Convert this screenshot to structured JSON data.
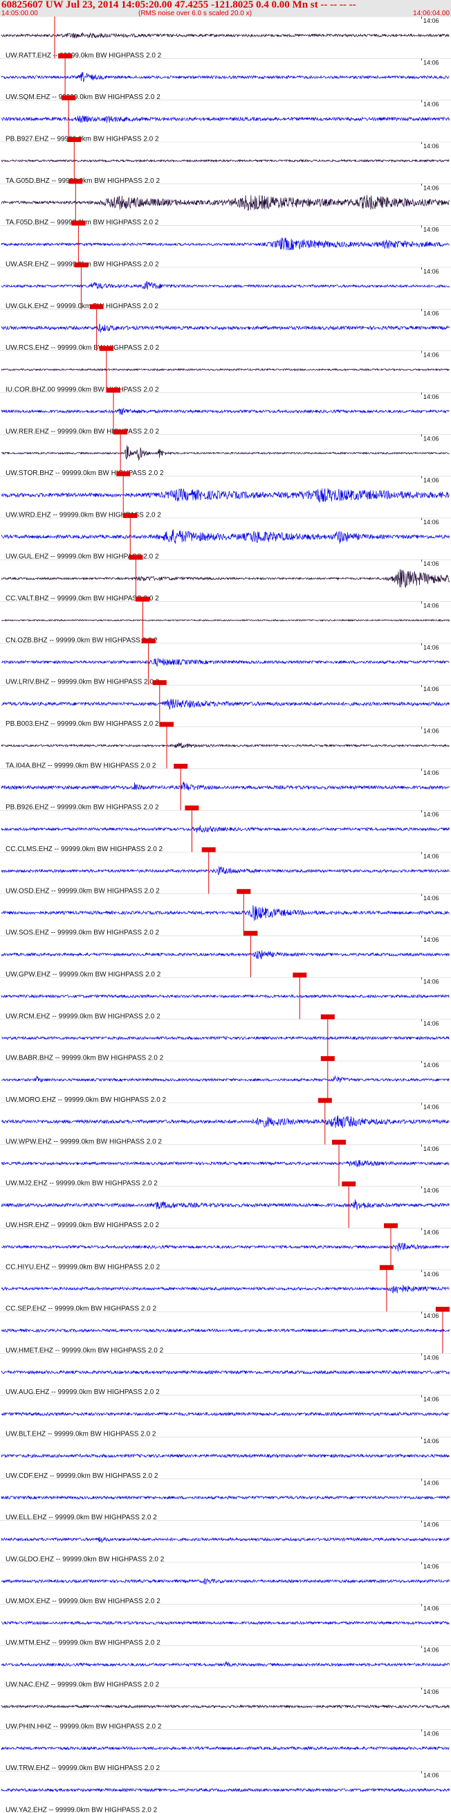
{
  "header": {
    "title": "60825607 UW Jul 23, 2014 14:05:20.00   47.4255 -121.8025  0.4 0.00 Mn st -- -- -- --",
    "start_time": "14:05:00.00",
    "note": "(RMS noise over 6.0 s scaled 20.0 x)",
    "end_time": "14:06:04.00"
  },
  "chart_data": {
    "type": "line",
    "title": "60825607 UW Jul 23, 2014 14:05:20.00   47.4255 -121.8025  0.4 0.00 Mn st -- -- -- --",
    "x_start": "14:05:00.00",
    "x_end": "14:06:04.00",
    "tick_label": "14:06",
    "tick_time_s": 60,
    "duration_s": 64,
    "colors": {
      "dark": "#1a0030",
      "blue": "#0000e6",
      "pick": "#e00000"
    },
    "channels": [
      {
        "label": "UW.RATT.EHZ -- 99999.0km BW  HIGHPASS  2.0  2",
        "pick_s": 7.6,
        "amp": 0.45,
        "color": "dark",
        "bursts": [
          {
            "t": 10,
            "a": 0.6,
            "w": 6
          }
        ]
      },
      {
        "label": "UW.SQM.EHZ -- 99999.0km BW  HIGHPASS  2.0  2",
        "pick_s": 9.1,
        "amp": 0.5,
        "color": "blue",
        "bursts": [
          {
            "t": 11.5,
            "a": 1.6,
            "w": 1.2
          }
        ]
      },
      {
        "label": "PB.B927.EHZ -- 99999.0km BW  HIGHPASS  2.0  2",
        "pick_s": 9.6,
        "amp": 0.6,
        "color": "blue",
        "bursts": [
          {
            "t": 11,
            "a": 0.9,
            "w": 1.5
          },
          {
            "t": 15,
            "a": 0.7,
            "w": 2
          }
        ]
      },
      {
        "label": "TA.G05D.BHZ -- 99999.0km BW  HIGHPASS  2.0  2",
        "pick_s": 10.4,
        "amp": 0.35,
        "color": "dark",
        "bursts": []
      },
      {
        "label": "TA.F05D.BHZ -- 99999.0km BW  HIGHPASS  2.0  2",
        "pick_s": 10.6,
        "amp": 0.5,
        "color": "dark",
        "bursts": [
          {
            "t": 16,
            "a": 2.2,
            "w": 6
          },
          {
            "t": 35,
            "a": 2.4,
            "w": 9
          },
          {
            "t": 52,
            "a": 1.8,
            "w": 6
          }
        ]
      },
      {
        "label": "UW.ASR.EHZ -- 99999.0km BW  HIGHPASS  2.0  2",
        "pick_s": 11.0,
        "amp": 0.45,
        "color": "blue",
        "bursts": [
          {
            "t": 40,
            "a": 2.0,
            "w": 6
          },
          {
            "t": 55,
            "a": 1.0,
            "w": 5
          }
        ]
      },
      {
        "label": "UW.GLK.EHZ -- 99999.0km BW  HIGHPASS  2.0  2",
        "pick_s": 11.4,
        "amp": 0.45,
        "color": "blue",
        "bursts": [
          {
            "t": 13,
            "a": 1.2,
            "w": 1.5
          },
          {
            "t": 20.5,
            "a": 1.6,
            "w": 1.5
          }
        ]
      },
      {
        "label": "UW.RCS.EHZ -- 99999.0km BW  HIGHPASS  2.0  2",
        "pick_s": 13.6,
        "amp": 0.6,
        "color": "blue",
        "bursts": [
          {
            "t": 14,
            "a": 1.0,
            "w": 1.5
          }
        ]
      },
      {
        "label": "IU.COR.BHZ.00 99999.0km BW  HIGHPASS  2.0  2",
        "pick_s": 15.0,
        "amp": 0.3,
        "color": "dark",
        "bursts": []
      },
      {
        "label": "UW.RER.EHZ -- 99999.0km BW  HIGHPASS  2.0  2",
        "pick_s": 16.0,
        "amp": 0.5,
        "color": "blue",
        "bursts": [
          {
            "t": 17,
            "a": 0.9,
            "w": 1.5
          }
        ]
      },
      {
        "label": "UW.STOR.BHZ -- 99999.0km BW  HIGHPASS  2.0  2",
        "pick_s": 17.0,
        "amp": 0.3,
        "color": "dark",
        "bursts": [
          {
            "t": 17.8,
            "a": 3.0,
            "w": 0.6
          },
          {
            "t": 19.5,
            "a": 2.6,
            "w": 0.6
          },
          {
            "t": 22.5,
            "a": 1.8,
            "w": 0.5
          }
        ]
      },
      {
        "label": "UW.WRD.EHZ -- 99999.0km BW  HIGHPASS  2.0  2",
        "pick_s": 17.4,
        "amp": 0.7,
        "color": "blue",
        "bursts": [
          {
            "t": 25,
            "a": 1.6,
            "w": 8
          },
          {
            "t": 45,
            "a": 1.8,
            "w": 10
          }
        ]
      },
      {
        "label": "UW.GUL.EHZ -- 99999.0km BW  HIGHPASS  2.0  2",
        "pick_s": 18.4,
        "amp": 0.6,
        "color": "blue",
        "bursts": [
          {
            "t": 24,
            "a": 2.2,
            "w": 5
          },
          {
            "t": 36,
            "a": 1.6,
            "w": 5
          },
          {
            "t": 48,
            "a": 2.0,
            "w": 1.5
          }
        ]
      },
      {
        "label": "CC.VALT.BHZ -- 99999.0km BW  HIGHPASS  2.0  2",
        "pick_s": 19.2,
        "amp": 0.35,
        "color": "dark",
        "bursts": [
          {
            "t": 20,
            "a": 0.6,
            "w": 4
          },
          {
            "t": 57,
            "a": 3.2,
            "w": 5
          }
        ]
      },
      {
        "label": "CN.OZB.BHZ -- 99999.0km BW  HIGHPASS  2.0  2",
        "pick_s": 20.2,
        "amp": 0.25,
        "color": "dark",
        "bursts": []
      },
      {
        "label": "UW.LRIV.BHZ -- 99999.0km BW  HIGHPASS  2.0  2",
        "pick_s": 21.0,
        "amp": 0.5,
        "color": "blue",
        "bursts": [
          {
            "t": 22,
            "a": 1.0,
            "w": 4
          }
        ]
      },
      {
        "label": "PB.B003.EHZ -- 99999.0km BW  HIGHPASS  2.0  2",
        "pick_s": 22.6,
        "amp": 0.6,
        "color": "blue",
        "bursts": [
          {
            "t": 24,
            "a": 1.3,
            "w": 4
          }
        ]
      },
      {
        "label": "TA.I04A.BHZ -- 99999.0km BW  HIGHPASS  2.0  2",
        "pick_s": 23.6,
        "amp": 0.35,
        "color": "dark",
        "bursts": [
          {
            "t": 25,
            "a": 0.8,
            "w": 2
          }
        ]
      },
      {
        "label": "PB.B926.EHZ -- 99999.0km BW  HIGHPASS  2.0  2",
        "pick_s": 25.6,
        "amp": 0.6,
        "color": "blue",
        "bursts": [
          {
            "t": 19,
            "a": 1.2,
            "w": 0.6
          },
          {
            "t": 26,
            "a": 1.5,
            "w": 1
          }
        ]
      },
      {
        "label": "CC.CLMS.EHZ -- 99999.0km BW  HIGHPASS  2.0  2",
        "pick_s": 27.2,
        "amp": 0.5,
        "color": "blue",
        "bursts": [
          {
            "t": 28,
            "a": 1.0,
            "w": 2
          }
        ]
      },
      {
        "label": "UW.OSD.EHZ -- 99999.0km BW  HIGHPASS  2.0  2",
        "pick_s": 29.6,
        "amp": 0.5,
        "color": "blue",
        "bursts": [
          {
            "t": 31,
            "a": 1.2,
            "w": 2
          }
        ]
      },
      {
        "label": "UW.SOS.EHZ -- 99999.0km BW  HIGHPASS  2.0  2",
        "pick_s": 34.6,
        "amp": 0.55,
        "color": "blue",
        "bursts": [
          {
            "t": 36,
            "a": 2.4,
            "w": 3
          }
        ]
      },
      {
        "label": "UW.GPW.EHZ -- 99999.0km BW  HIGHPASS  2.0  2",
        "pick_s": 35.6,
        "amp": 0.5,
        "color": "blue",
        "bursts": [
          {
            "t": 36.5,
            "a": 1.6,
            "w": 1.5
          }
        ]
      },
      {
        "label": "UW.RCM.EHZ -- 99999.0km BW  HIGHPASS  2.0  2",
        "pick_s": 42.6,
        "amp": 0.5,
        "color": "blue",
        "bursts": []
      },
      {
        "label": "UW.BABR.BHZ -- 99999.0km BW  HIGHPASS  2.0  2",
        "pick_s": 46.6,
        "amp": 0.5,
        "color": "blue",
        "bursts": []
      },
      {
        "label": "UW.MORO.EHZ -- 99999.0km BW  HIGHPASS  2.0  2",
        "pick_s": 46.6,
        "amp": 0.45,
        "color": "blue",
        "bursts": [
          {
            "t": 5,
            "a": 0.9,
            "w": 0.6
          },
          {
            "t": 47.5,
            "a": 1.2,
            "w": 1
          }
        ]
      },
      {
        "label": "UW.WPW.EHZ -- 99999.0km BW  HIGHPASS  2.0  2",
        "pick_s": 46.2,
        "amp": 0.6,
        "color": "blue",
        "bursts": [
          {
            "t": 37,
            "a": 1.6,
            "w": 3
          },
          {
            "t": 47.5,
            "a": 2.4,
            "w": 3
          }
        ]
      },
      {
        "label": "UW.MJ2.EHZ -- 99999.0km BW  HIGHPASS  2.0  2",
        "pick_s": 48.2,
        "amp": 0.5,
        "color": "blue",
        "bursts": [
          {
            "t": 50,
            "a": 1.2,
            "w": 2
          }
        ]
      },
      {
        "label": "UW.HSR.EHZ -- 99999.0km BW  HIGHPASS  2.0  2",
        "pick_s": 49.6,
        "amp": 0.6,
        "color": "blue",
        "bursts": [
          {
            "t": 22,
            "a": 1.0,
            "w": 3
          },
          {
            "t": 50.5,
            "a": 1.4,
            "w": 1.5
          }
        ]
      },
      {
        "label": "CC.HIYU.EHZ -- 99999.0km BW  HIGHPASS  2.0  2",
        "pick_s": 55.6,
        "amp": 0.5,
        "color": "blue",
        "bursts": [
          {
            "t": 56.5,
            "a": 1.4,
            "w": 1.5
          }
        ]
      },
      {
        "label": "CC.SEP.EHZ -- 99999.0km BW  HIGHPASS  2.0  2",
        "pick_s": 55.0,
        "amp": 0.5,
        "color": "blue",
        "bursts": [
          {
            "t": 56,
            "a": 1.6,
            "w": 2
          }
        ]
      },
      {
        "label": "UW.HMET.EHZ -- 99999.0km BW  HIGHPASS  2.0  2",
        "pick_s": 63.0,
        "amp": 0.5,
        "color": "blue",
        "bursts": []
      },
      {
        "label": "UW.AUG.EHZ -- 99999.0km BW  HIGHPASS  2.0  2",
        "pick_s": null,
        "amp": 0.55,
        "color": "blue",
        "bursts": []
      },
      {
        "label": "UW.BLT.EHZ -- 99999.0km BW  HIGHPASS  2.0  2",
        "pick_s": null,
        "amp": 0.55,
        "color": "blue",
        "bursts": []
      },
      {
        "label": "UW.CDF.EHZ -- 99999.0km BW  HIGHPASS  2.0  2",
        "pick_s": null,
        "amp": 0.55,
        "color": "blue",
        "bursts": []
      },
      {
        "label": "UW.ELL.EHZ -- 99999.0km BW  HIGHPASS  2.0  2",
        "pick_s": null,
        "amp": 0.5,
        "color": "blue",
        "bursts": []
      },
      {
        "label": "UW.GLDO.EHZ -- 99999.0km BW  HIGHPASS  2.0  2",
        "pick_s": null,
        "amp": 0.5,
        "color": "blue",
        "bursts": [
          {
            "t": 14,
            "a": 1.0,
            "w": 0.5
          }
        ]
      },
      {
        "label": "UW.MOX.EHZ -- 99999.0km BW  HIGHPASS  2.0  2",
        "pick_s": null,
        "amp": 0.5,
        "color": "blue",
        "bursts": [
          {
            "t": 29,
            "a": 0.7,
            "w": 1
          }
        ]
      },
      {
        "label": "UW.MTM.EHZ -- 99999.0km BW  HIGHPASS  2.0  2",
        "pick_s": null,
        "amp": 0.5,
        "color": "blue",
        "bursts": []
      },
      {
        "label": "UW.NAC.EHZ -- 99999.0km BW  HIGHPASS  2.0  2",
        "pick_s": null,
        "amp": 0.5,
        "color": "blue",
        "bursts": [
          {
            "t": 32,
            "a": 1.0,
            "w": 0.3
          }
        ]
      },
      {
        "label": "UW.PHIN.HHZ -- 99999.0km BW  HIGHPASS  2.0  2",
        "pick_s": null,
        "amp": 0.45,
        "color": "dark",
        "bursts": []
      },
      {
        "label": "UW.TRW.EHZ -- 99999.0km BW  HIGHPASS  2.0  2",
        "pick_s": null,
        "amp": 0.5,
        "color": "blue",
        "bursts": []
      },
      {
        "label": "UW.YA2.EHZ -- 99999.0km BW  HIGHPASS  2.0  2",
        "pick_s": null,
        "amp": 0.5,
        "color": "blue",
        "bursts": []
      }
    ]
  }
}
